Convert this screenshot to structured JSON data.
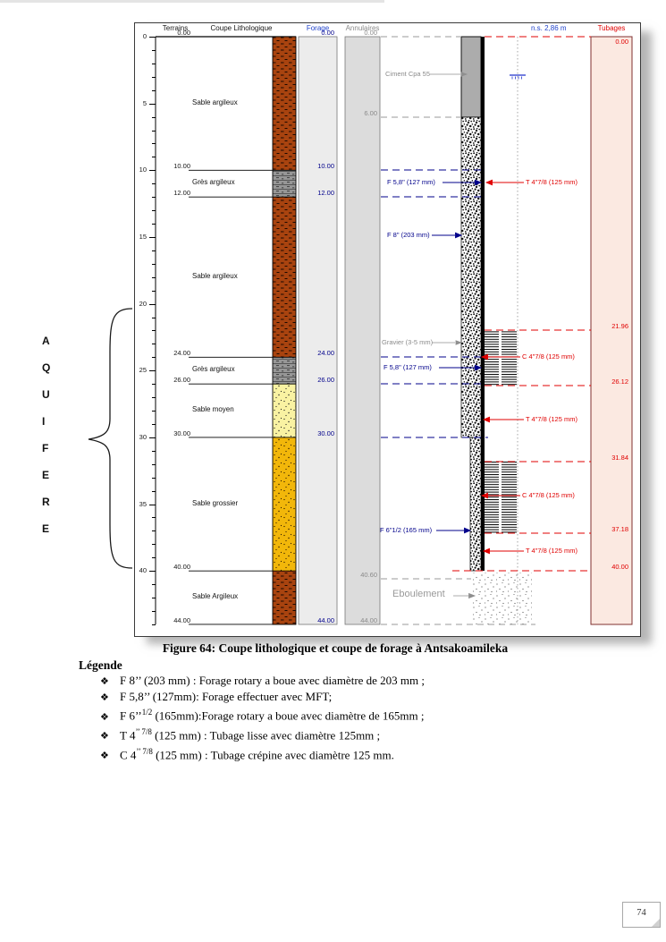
{
  "figure": {
    "headers": {
      "terrains": "Terrains",
      "coupe": "Coupe Lithologique",
      "forage": "Forage",
      "annulaires": "Annulaires",
      "water_level": "n.s. 2,86 m",
      "tubages": "Tubages"
    },
    "axis": {
      "major": [
        0,
        5,
        10,
        15,
        20,
        25,
        30,
        35,
        40
      ],
      "max": 44
    },
    "terrains_depths": [
      "0.00",
      "10.00",
      "12.00",
      "24.00",
      "26.00",
      "30.00",
      "40.00",
      "44.00"
    ],
    "layers": [
      {
        "name": "Sable argileux",
        "from": 0,
        "to": 10,
        "texture": "argileux",
        "color": "#A8430F"
      },
      {
        "name": "Grès argileux",
        "from": 10,
        "to": 12,
        "texture": "gres",
        "color": "#979797"
      },
      {
        "name": "Sable argileux",
        "from": 12,
        "to": 24,
        "texture": "argileux",
        "color": "#A8430F"
      },
      {
        "name": "Grès argileux",
        "from": 24,
        "to": 26,
        "texture": "gres",
        "color": "#979797"
      },
      {
        "name": "Sable moyen",
        "from": 26,
        "to": 30,
        "texture": "moyen",
        "color": "#F9F2A2"
      },
      {
        "name": "Sable grossier",
        "from": 30,
        "to": 40,
        "texture": "grossier",
        "color": "#F2B70A"
      },
      {
        "name": "Sable Argileux",
        "from": 40,
        "to": 44,
        "texture": "argileux",
        "color": "#A8430F"
      }
    ],
    "forage_depths": [
      "0.00",
      "10.00",
      "12.00",
      "24.00",
      "26.00",
      "30.00",
      "44.00"
    ],
    "annulaires_depths": [
      "0.00",
      "6.00",
      "40.60",
      "44.00"
    ],
    "tubages_depths": [
      "0.00",
      "21.96",
      "26.12",
      "31.84",
      "37.18",
      "40.00"
    ],
    "annotations_left": [
      "Ciment Cpa 55",
      "F 5,8\" (127 mm)",
      "F 8\" (203 mm)",
      "Gravier (3-5 mm)",
      "F 5,8\" (127 mm)",
      "F 6\"1/2 (165 mm)",
      "Eboulement"
    ],
    "annotations_right": [
      "T 4\"7/8 (125 mm)",
      "C 4\"7/8 (125 mm)",
      "T 4\"7/8 (125 mm)",
      "C 4\"7/8 (125 mm)",
      "T 4\"7/8 (125 mm)"
    ],
    "aquifer": "AQUIFERE"
  },
  "caption": "Figure 64: Coupe lithologique  et coupe de forage à Antsakoamileka",
  "legend": {
    "title": "Légende",
    "bullet": "❖",
    "items": [
      {
        "pre": "F 8’’ (203 mm) : Forage rotary a boue avec diamètre de 203 mm ;",
        "sup": "",
        "rest": ""
      },
      {
        "pre": "F 5,8’’ (127mm): Forage effectuer avec MFT;",
        "sup": "",
        "rest": ""
      },
      {
        "pre": "F 6’’",
        "sup": "1/2",
        "rest": " (165mm):Forage rotary a boue avec diamètre de 165mm ;"
      },
      {
        "pre": "T 4",
        "sup": "’’ 7/8",
        "rest": " (125 mm) : Tubage lisse avec diamètre 125mm ;"
      },
      {
        "pre": "C 4",
        "sup": "’’ 7/8",
        "rest": " (125 mm) : Tubage crépine avec diamètre 125 mm."
      }
    ]
  },
  "page_number": "74",
  "colors": {
    "accent_red": "#E00000",
    "navy": "#00008B",
    "header_blue": "#2244CC",
    "gray_label": "#8a8a8a",
    "tubages_fill": "#FBE9E1",
    "forage_fill": "#ECECEC",
    "annulaires_fill": "#DCDCDC",
    "cement_fill": "#ACACAC"
  }
}
